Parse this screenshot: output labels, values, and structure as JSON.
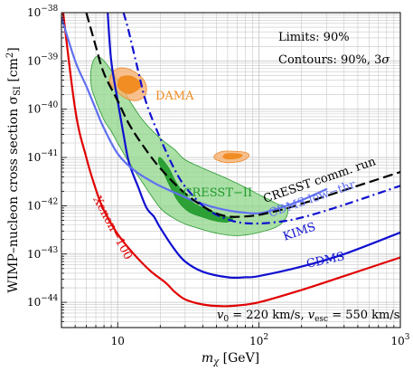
{
  "chart_data": {
    "type": "line",
    "xlabel_main": "m",
    "xlabel_sub": "χ",
    "xlabel_unit": " [GeV]",
    "ylabel_main": "WIMP–nucleon cross section σ",
    "ylabel_sub": "SI",
    "ylabel_unit": " [cm",
    "ylabel_sup": "2",
    "ylabel_end": "]",
    "x_scale": "log",
    "y_scale": "log",
    "xlim": [
      4,
      1000
    ],
    "ylim": [
      3e-45,
      1e-38
    ],
    "x_ticks": [
      {
        "value": 10,
        "base": "10",
        "exp": ""
      },
      {
        "value": 100,
        "base": "10",
        "exp": "2"
      },
      {
        "value": 1000,
        "base": "10",
        "exp": "3"
      }
    ],
    "y_ticks": [
      {
        "value": 1e-44,
        "base": "10",
        "exp": "−44"
      },
      {
        "value": 1e-43,
        "base": "10",
        "exp": "−43"
      },
      {
        "value": 1e-42,
        "base": "10",
        "exp": "−42"
      },
      {
        "value": 1e-41,
        "base": "10",
        "exp": "−41"
      },
      {
        "value": 1e-40,
        "base": "10",
        "exp": "−40"
      },
      {
        "value": 1e-39,
        "base": "10",
        "exp": "−39"
      },
      {
        "value": 1e-38,
        "base": "10",
        "exp": "−38"
      }
    ],
    "grid": true,
    "legend_text": {
      "limits": "Limits: 90%",
      "contours_prefix": "Contours: 90%, 3",
      "contours_sigma": "σ"
    },
    "halo_note": {
      "v0_sym": "v",
      "v0_sub": "0",
      "v0_val": " = 220 km/s, ",
      "vesc_sym": "v",
      "vesc_sub": "esc",
      "vesc_val": " = 550 km/s"
    },
    "colors": {
      "xenon": "#e00000",
      "cdms": "#1010d0",
      "cdms_lowthr": "#6070f0",
      "kims": "#1010d0",
      "cresst_run": "#000000",
      "cresst_fill": "#8fd68a",
      "cresst_core": "#1f9a2a",
      "dama_outer": "#f6b070",
      "dama_inner": "#f08a1e",
      "grid": "#c8c8c8"
    },
    "series": [
      {
        "name": "Xenon−100",
        "style": "solid",
        "points": [
          [
            4,
            2e-38
          ],
          [
            5,
            1e-40
          ],
          [
            6,
            1e-41
          ],
          [
            7,
            2.2e-42
          ],
          [
            8,
            8e-43
          ],
          [
            10,
            2.6e-43
          ],
          [
            13,
            1e-43
          ],
          [
            17,
            4.5e-44
          ],
          [
            22,
            2.5e-44
          ],
          [
            25,
            1.7e-44
          ],
          [
            30,
            1.15e-44
          ],
          [
            40,
            9e-45
          ],
          [
            55,
            8.3e-45
          ],
          [
            70,
            8.6e-45
          ],
          [
            100,
            1e-44
          ],
          [
            200,
            1.8e-44
          ],
          [
            400,
            3.5e-44
          ],
          [
            1000,
            8.5e-44
          ]
        ]
      },
      {
        "name": "CDMS",
        "style": "solid",
        "points": [
          [
            8.5,
            1e-38
          ],
          [
            9,
            1e-39
          ],
          [
            10,
            1.5e-40
          ],
          [
            11,
            3e-41
          ],
          [
            12,
            8e-42
          ],
          [
            14,
            2.4e-42
          ],
          [
            16,
            9e-43
          ],
          [
            18,
            6e-43
          ],
          [
            20,
            3.5e-43
          ],
          [
            25,
            1.3e-43
          ],
          [
            30,
            7e-44
          ],
          [
            40,
            4.3e-44
          ],
          [
            60,
            3.3e-44
          ],
          [
            80,
            3.3e-44
          ],
          [
            100,
            3.5e-44
          ],
          [
            200,
            5.5e-44
          ],
          [
            400,
            1e-43
          ],
          [
            1000,
            2.8e-43
          ]
        ]
      },
      {
        "name": "CDMS low-thr",
        "style": "solid",
        "points": [
          [
            4,
            8e-39
          ],
          [
            5,
            1e-39
          ],
          [
            6,
            3e-40
          ],
          [
            7,
            1e-40
          ],
          [
            8,
            4e-41
          ],
          [
            10,
            1.2e-41
          ],
          [
            13,
            5.5e-42
          ],
          [
            18,
            3e-42
          ],
          [
            25,
            1.9e-42
          ],
          [
            35,
            1.25e-42
          ],
          [
            50,
            9e-43
          ],
          [
            70,
            7.5e-43
          ],
          [
            100,
            7e-43
          ],
          [
            140,
            9e-43
          ],
          [
            200,
            1.3e-42
          ],
          [
            300,
            2.2e-42
          ]
        ]
      },
      {
        "name": "KIMS",
        "style": "dashdot",
        "points": [
          [
            11,
            1e-38
          ],
          [
            12,
            4e-39
          ],
          [
            14,
            6e-40
          ],
          [
            16,
            1.3e-40
          ],
          [
            20,
            2.5e-41
          ],
          [
            25,
            6e-42
          ],
          [
            30,
            2.5e-42
          ],
          [
            40,
            1e-42
          ],
          [
            50,
            6.5e-43
          ],
          [
            70,
            4.6e-43
          ],
          [
            100,
            4.3e-43
          ],
          [
            150,
            4.8e-43
          ],
          [
            200,
            5.7e-43
          ],
          [
            300,
            8e-43
          ],
          [
            500,
            1.3e-42
          ],
          [
            1000,
            2.6e-42
          ]
        ]
      },
      {
        "name": "CRESST comm. run",
        "style": "dashed",
        "points": [
          [
            6,
            1e-38
          ],
          [
            7,
            2e-39
          ],
          [
            8,
            5.5e-40
          ],
          [
            10,
            1.5e-40
          ],
          [
            12,
            5e-41
          ],
          [
            15,
            1.8e-41
          ],
          [
            20,
            6e-42
          ],
          [
            30,
            1.8e-42
          ],
          [
            45,
            8e-43
          ],
          [
            60,
            6e-43
          ],
          [
            80,
            6e-43
          ],
          [
            100,
            6.5e-43
          ],
          [
            150,
            8.5e-43
          ],
          [
            200,
            1.1e-42
          ],
          [
            300,
            1.6e-42
          ],
          [
            500,
            2.6e-42
          ],
          [
            1000,
            5e-42
          ]
        ]
      }
    ],
    "regions": [
      {
        "name": "CRESST−II",
        "level": "2σ",
        "points": [
          [
            6.5,
            7e-40
          ],
          [
            7,
            1.2e-39
          ],
          [
            8,
            1e-39
          ],
          [
            10,
            4e-40
          ],
          [
            12,
            1.6e-40
          ],
          [
            15,
            6e-41
          ],
          [
            20,
            2.5e-41
          ],
          [
            25,
            1.5e-41
          ],
          [
            30,
            9e-42
          ],
          [
            40,
            6e-42
          ],
          [
            60,
            3.6e-42
          ],
          [
            80,
            2.4e-42
          ],
          [
            100,
            1.7e-42
          ],
          [
            130,
            1.15e-42
          ],
          [
            160,
            8e-43
          ],
          [
            140,
            4e-43
          ],
          [
            100,
            2.8e-43
          ],
          [
            70,
            2.4e-43
          ],
          [
            50,
            2.7e-43
          ],
          [
            40,
            3.2e-43
          ],
          [
            30,
            4.2e-43
          ],
          [
            25,
            5.5e-43
          ],
          [
            20,
            9e-43
          ],
          [
            15,
            3e-42
          ],
          [
            12,
            8e-42
          ],
          [
            10,
            2e-41
          ],
          [
            9,
            3.5e-41
          ],
          [
            8,
            6e-41
          ],
          [
            7,
            1.5e-40
          ],
          [
            6.5,
            3e-40
          ]
        ]
      },
      {
        "name": "CRESST−II",
        "level": "1σ",
        "points": [
          [
            20,
            1e-41
          ],
          [
            23,
            6e-42
          ],
          [
            26,
            3e-42
          ],
          [
            30,
            1.7e-42
          ],
          [
            35,
            1.1e-42
          ],
          [
            45,
            8e-43
          ],
          [
            55,
            6.3e-43
          ],
          [
            65,
            5.4e-43
          ],
          [
            60,
            4.6e-43
          ],
          [
            50,
            4.8e-43
          ],
          [
            40,
            5.8e-43
          ],
          [
            32,
            7.5e-43
          ],
          [
            27,
            1.2e-42
          ],
          [
            24,
            2.2e-42
          ],
          [
            21,
            5e-42
          ],
          [
            19.5,
            8e-42
          ]
        ]
      },
      {
        "name": "DAMA",
        "level": "3σ",
        "points": [
          [
            9,
            5.2e-40
          ],
          [
            10,
            7e-40
          ],
          [
            12,
            6.8e-40
          ],
          [
            14,
            5.2e-40
          ],
          [
            15.5,
            3.8e-40
          ],
          [
            16,
            2.4e-40
          ],
          [
            15,
            1.7e-40
          ],
          [
            13,
            1.5e-40
          ],
          [
            11,
            1.8e-40
          ],
          [
            9.5,
            2.6e-40
          ],
          [
            8.8,
            3.6e-40
          ]
        ]
      },
      {
        "name": "DAMA",
        "level": "90%",
        "points": [
          [
            10.5,
            4.6e-40
          ],
          [
            12.5,
            4.8e-40
          ],
          [
            14.5,
            3.5e-40
          ],
          [
            14,
            2.6e-40
          ],
          [
            12,
            2.1e-40
          ],
          [
            10.5,
            2.5e-40
          ],
          [
            10,
            3.2e-40
          ]
        ]
      },
      {
        "name": "DAMA",
        "level": "3σ",
        "points": [
          [
            50,
            1.2e-41
          ],
          [
            56,
            1.35e-41
          ],
          [
            65,
            1.35e-41
          ],
          [
            78,
            1.3e-41
          ],
          [
            85,
            1.15e-41
          ],
          [
            82,
            9.5e-42
          ],
          [
            72,
            8.2e-42
          ],
          [
            60,
            7.8e-42
          ],
          [
            52,
            8.5e-42
          ],
          [
            48,
            1e-41
          ]
        ]
      },
      {
        "name": "DAMA",
        "level": "90%",
        "points": [
          [
            58,
            1.18e-41
          ],
          [
            68,
            1.2e-41
          ],
          [
            76,
            1.12e-41
          ],
          [
            72,
            9.8e-42
          ],
          [
            62,
            9.3e-42
          ],
          [
            56,
            1e-41
          ]
        ]
      }
    ],
    "labels": [
      {
        "name": "DAMA",
        "text": "DAMA",
        "x": 18.5,
        "y": 1.6e-40,
        "rot": 0,
        "color": "#f08a1e"
      },
      {
        "name": "CRESST−II",
        "text": "CRESST−II",
        "x": 29,
        "y": 1.55e-42,
        "rot": 0,
        "color": "#1f9a2a"
      },
      {
        "name": "CRESST comm. run",
        "text": "CRESST comm. run",
        "x": 110,
        "y": 1.15e-42,
        "rot": -19,
        "color": "#000000"
      },
      {
        "name": "CDMS low-thr",
        "text": "CDMS low−thr",
        "x": 120,
        "y": 5.8e-43,
        "rot": -19,
        "color": "#6070f0"
      },
      {
        "name": "KIMS",
        "text": "KIMS",
        "x": 152,
        "y": 1.9e-43,
        "rot": -19,
        "color": "#1010d0"
      },
      {
        "name": "CDMS",
        "text": "CDMS",
        "x": 220,
        "y": 5.2e-44,
        "rot": -12,
        "color": "#1010d0"
      },
      {
        "name": "Xenon−100",
        "text": "Xenon−100",
        "x": 6.7,
        "y": 1.4e-42,
        "rot": 62,
        "color": "#e00000"
      }
    ]
  }
}
